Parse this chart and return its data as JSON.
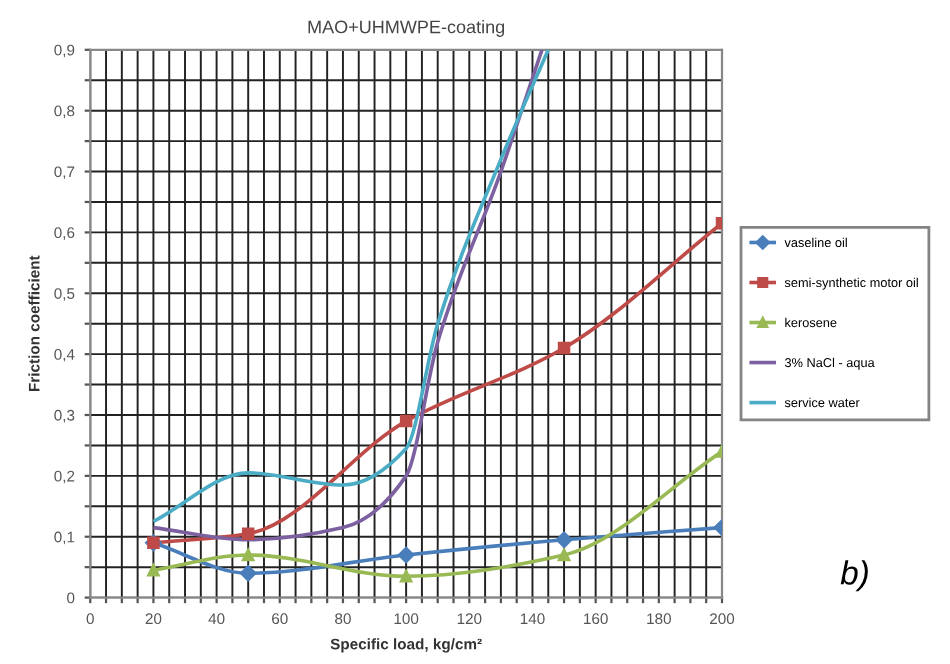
{
  "chart_data": {
    "type": "line",
    "title": "MAO+UHMWPE-coating",
    "xlabel": "Specific load, kg/cm²",
    "ylabel": "Friction coefficient",
    "annotations": [
      "b)"
    ],
    "xlim": [
      0,
      200
    ],
    "ylim": [
      0,
      0.9
    ],
    "xticks": [
      0,
      {
        "value": 5,
        "label": null
      },
      {
        "value": 10,
        "label": null
      },
      {
        "value": 15,
        "label": null
      },
      20,
      {
        "value": 25,
        "label": null
      },
      {
        "value": 30,
        "label": null
      },
      {
        "value": 35,
        "label": null
      },
      40,
      {
        "value": 45,
        "label": null
      },
      {
        "value": 50,
        "label": null
      },
      {
        "value": 55,
        "label": null
      },
      60,
      {
        "value": 65,
        "label": null
      },
      {
        "value": 70,
        "label": null
      },
      {
        "value": 75,
        "label": null
      },
      80,
      {
        "value": 85,
        "label": null
      },
      {
        "value": 90,
        "label": null
      },
      {
        "value": 95,
        "label": null
      },
      100,
      {
        "value": 105,
        "label": null
      },
      {
        "value": 110,
        "label": null
      },
      {
        "value": 115,
        "label": null
      },
      120,
      {
        "value": 125,
        "label": null
      },
      {
        "value": 130,
        "label": null
      },
      {
        "value": 135,
        "label": null
      },
      140,
      {
        "value": 145,
        "label": null
      },
      {
        "value": 150,
        "label": null
      },
      {
        "value": 155,
        "label": null
      },
      160,
      {
        "value": 165,
        "label": null
      },
      {
        "value": 170,
        "label": null
      },
      {
        "value": 175,
        "label": null
      },
      180,
      {
        "value": 185,
        "label": null
      },
      {
        "value": 190,
        "label": null
      },
      {
        "value": 195,
        "label": null
      },
      200
    ],
    "yticks": [
      0,
      {
        "value": 0.05,
        "label": null
      },
      {
        "value": 0.1,
        "label": "0,1"
      },
      {
        "value": 0.15,
        "label": null
      },
      {
        "value": 0.2,
        "label": "0,2"
      },
      {
        "value": 0.25,
        "label": null
      },
      {
        "value": 0.3,
        "label": "0,3"
      },
      {
        "value": 0.35,
        "label": null
      },
      {
        "value": 0.4,
        "label": "0,4"
      },
      {
        "value": 0.45,
        "label": null
      },
      {
        "value": 0.5,
        "label": "0,5"
      },
      {
        "value": 0.55,
        "label": null
      },
      {
        "value": 0.6,
        "label": "0,6"
      },
      {
        "value": 0.65,
        "label": null
      },
      {
        "value": 0.7,
        "label": "0,7"
      },
      {
        "value": 0.75,
        "label": null
      },
      {
        "value": 0.8,
        "label": "0,8"
      },
      {
        "value": 0.85,
        "label": null
      },
      {
        "value": 0.9,
        "label": "0,9"
      }
    ],
    "grid": true,
    "legend": "right",
    "line_style": "solid",
    "series": [
      {
        "name": "vaseline oil",
        "color": "#4a7ebb",
        "marker": "diamond",
        "x": [
          20,
          50,
          100,
          150,
          200
        ],
        "values": [
          0.09,
          0.04,
          0.07,
          0.095,
          0.115
        ]
      },
      {
        "name": "semi-synthetic motor oil",
        "color": "#be4b48",
        "marker": "square",
        "x": [
          20,
          50,
          100,
          150,
          200
        ],
        "values": [
          0.09,
          0.105,
          0.29,
          0.41,
          0.615
        ]
      },
      {
        "name": "kerosene",
        "color": "#98b954",
        "marker": "triangle",
        "x": [
          20,
          50,
          100,
          150,
          200
        ],
        "values": [
          0.045,
          0.07,
          0.035,
          0.07,
          0.24
        ]
      },
      {
        "name": "3% NaCl - aqua",
        "color": "#7d60a0",
        "marker": "none",
        "x": [
          20,
          50,
          80,
          100,
          110,
          130,
          143
        ],
        "values": [
          0.115,
          0.095,
          0.115,
          0.2,
          0.42,
          0.7,
          0.9
        ]
      },
      {
        "name": "service water",
        "color": "#4bacc6",
        "marker": "none",
        "x": [
          20,
          50,
          80,
          100,
          110,
          130,
          145
        ],
        "values": [
          0.125,
          0.205,
          0.185,
          0.245,
          0.45,
          0.72,
          0.9
        ]
      }
    ]
  }
}
